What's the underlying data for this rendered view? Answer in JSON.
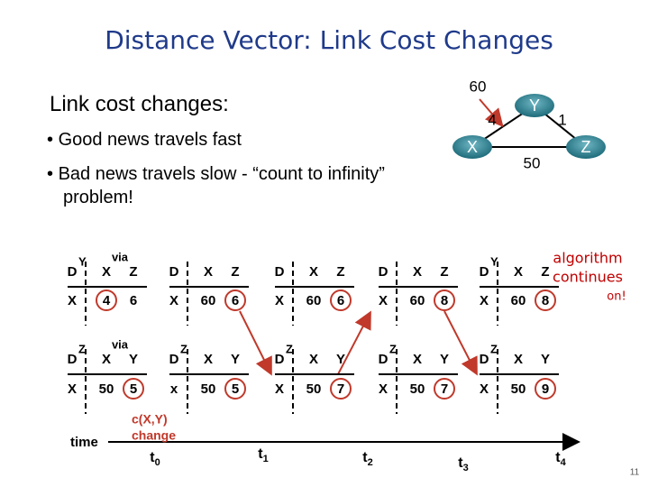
{
  "title": "Distance Vector: Link Cost Changes",
  "heading": "Link cost changes:",
  "bullets": [
    "Good news travels fast",
    "Bad news travels slow - “count to infinity” problem!"
  ],
  "network": {
    "nodes": [
      "X",
      "Y",
      "Z"
    ],
    "edge_labels": [
      60,
      4,
      1,
      50
    ]
  },
  "y_tables": [
    {
      "owner": "Y",
      "via": "via",
      "header": [
        "D",
        "X",
        "Z"
      ],
      "row": [
        "X",
        4,
        6
      ]
    },
    {
      "header": [
        "D",
        "X",
        "Z"
      ],
      "row": [
        "X",
        60,
        6
      ]
    },
    {
      "header": [
        "D",
        "X",
        "Z"
      ],
      "row": [
        "X",
        60,
        6
      ]
    },
    {
      "header": [
        "D",
        "X",
        "Z"
      ],
      "row": [
        "X",
        60,
        8
      ]
    },
    {
      "owner": "Y",
      "header": [
        "D",
        "X",
        "Z"
      ],
      "row": [
        "X",
        60,
        8
      ]
    }
  ],
  "z_tables": [
    {
      "owner": "Z",
      "via": "via",
      "header": [
        "D",
        "X",
        "Y"
      ],
      "row": [
        "X",
        50,
        5
      ]
    },
    {
      "owner": "Z",
      "header": [
        "D",
        "X",
        "Y"
      ],
      "row": [
        "x",
        50,
        5
      ]
    },
    {
      "owner": "Z",
      "header": [
        "D",
        "X",
        "Y"
      ],
      "row": [
        "X",
        50,
        7
      ]
    },
    {
      "owner": "Z",
      "header": [
        "D",
        "X",
        "Y"
      ],
      "row": [
        "X",
        50,
        7
      ]
    },
    {
      "owner": "Z",
      "header": [
        "D",
        "X",
        "Y"
      ],
      "row": [
        "X",
        50,
        9
      ]
    }
  ],
  "change_note": [
    "c(X,Y)",
    "change"
  ],
  "continue_note": [
    "algorithm",
    "continues",
    "on!"
  ],
  "time_label": "time",
  "times": [
    {
      "t": "t",
      "sub": "0"
    },
    {
      "t": "t",
      "sub": "1"
    },
    {
      "t": "t",
      "sub": "2"
    },
    {
      "t": "t",
      "sub": "3"
    },
    {
      "t": "t",
      "sub": "4"
    }
  ],
  "page_number": 11
}
